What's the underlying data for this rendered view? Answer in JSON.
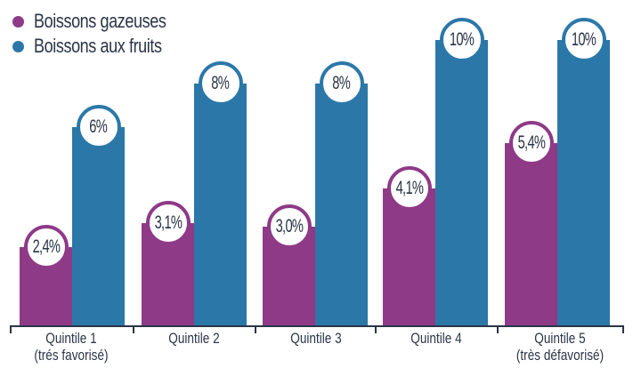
{
  "legend": [
    {
      "label": "Boissons gazeuses",
      "color": "#8e3a87"
    },
    {
      "label": "Boissons aux fruits",
      "color": "#2b78a8"
    }
  ],
  "chart_data": {
    "type": "bar",
    "title": "",
    "xlabel": "",
    "ylabel": "",
    "categories": [
      "Quintile 1 (trés favorisé)",
      "Quintile 2",
      "Quintile 3",
      "Quintile 4",
      "Quintile 5 (très défavorisé)"
    ],
    "series": [
      {
        "name": "Boissons gazeuses",
        "color": "#8e3a87",
        "values": [
          2.4,
          3.1,
          3.0,
          4.1,
          5.4
        ],
        "labels": [
          "2,4%",
          "3,1%",
          "3,0%",
          "4,1%",
          "5,4%"
        ]
      },
      {
        "name": "Boissons aux fruits",
        "color": "#2b78a8",
        "values": [
          6,
          8,
          8,
          10,
          10
        ],
        "labels": [
          "6%",
          "8%",
          "8%",
          "10%",
          "10%"
        ]
      }
    ],
    "grid": false,
    "legend_position": "top-left"
  },
  "xaxis": {
    "groups": [
      {
        "line1": "Quintile 1",
        "line2": "(trés favorisé)"
      },
      {
        "line1": "Quintile 2",
        "line2": ""
      },
      {
        "line1": "Quintile 3",
        "line2": ""
      },
      {
        "line1": "Quintile 4",
        "line2": ""
      },
      {
        "line1": "Quintile 5",
        "line2": "(très défavorisé)"
      }
    ]
  }
}
